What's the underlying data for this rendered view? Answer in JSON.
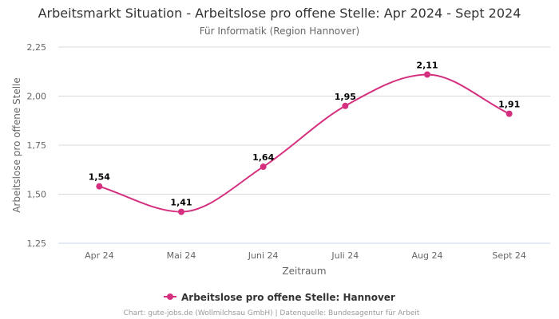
{
  "colors": {
    "series": "#d4307f",
    "grid": "#d8d8d8",
    "axis": "#ccd6eb"
  },
  "chart_data": {
    "type": "line",
    "title": "Arbeitsmarkt Situation - Arbeitslose pro offene Stelle: Apr 2024 - Sept 2024",
    "subtitle": "Für Informatik (Region Hannover)",
    "xlabel": "Zeitraum",
    "ylabel": "Arbeitslose pro offene Stelle",
    "categories": [
      "Apr 24",
      "Mai 24",
      "Juni 24",
      "Juli 24",
      "Aug 24",
      "Sept 24"
    ],
    "ylim": [
      1.25,
      2.25
    ],
    "yticks": [
      "1,25",
      "1,50",
      "1,75",
      "2,00",
      "2,25"
    ],
    "yticks_values": [
      1.25,
      1.5,
      1.75,
      2.0,
      2.25
    ],
    "grid": true,
    "legend_position": "bottom-center",
    "series": [
      {
        "name": "Arbeitslose pro offene Stelle: Hannover",
        "values": [
          1.54,
          1.41,
          1.64,
          1.95,
          2.11,
          1.91
        ],
        "labels": [
          "1,54",
          "1,41",
          "1,64",
          "1,95",
          "2,11",
          "1,91"
        ]
      }
    ]
  },
  "credits": "Chart: gute-jobs.de (Wollmilchsau GmbH) | Datenquelle: Bundesagentur für Arbeit"
}
